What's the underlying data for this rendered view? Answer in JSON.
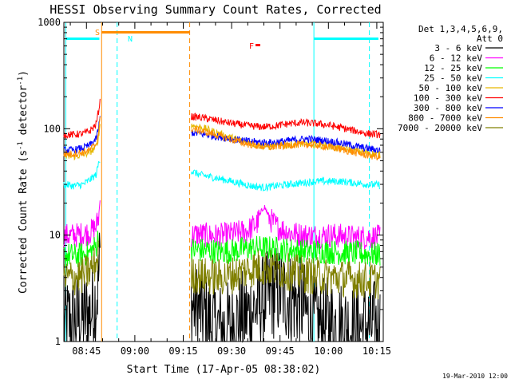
{
  "chart_data": {
    "type": "line",
    "title": "HESSI Observing Summary Count Rates, Corrected",
    "xlabel": "Start Time (17-Apr-05 08:38:02)",
    "ylabel": "Corrected Count Rate (s⁻¹ detector⁻¹)",
    "ylabel_main": "Corrected Count Rate (s",
    "ylabel_sup1": "-1",
    "ylabel_mid": " detector",
    "ylabel_sup2": "-1",
    "ylabel_end": ")",
    "yscale": "log",
    "ylim": [
      1,
      1000
    ],
    "xlim_minutes": [
      0,
      99
    ],
    "x_ticks": [
      {
        "label": "08:45",
        "minute": 7
      },
      {
        "label": "09:00",
        "minute": 22
      },
      {
        "label": "09:15",
        "minute": 37
      },
      {
        "label": "09:30",
        "minute": 52
      },
      {
        "label": "09:45",
        "minute": 67
      },
      {
        "label": "10:00",
        "minute": 82
      },
      {
        "label": "10:15",
        "minute": 97
      }
    ],
    "y_ticks": [
      {
        "label": "1",
        "value": 1
      },
      {
        "label": "10",
        "value": 10
      },
      {
        "label": "100",
        "value": 100
      },
      {
        "label": "1000",
        "value": 1000
      }
    ],
    "legend_header": [
      "Det 1,3,4,5,6,9,",
      "Att 0"
    ],
    "series": [
      {
        "name": "3 - 6 keV",
        "color": "#000000",
        "segments": [
          {
            "x": [
              0,
              4,
              8,
              10,
              10.8,
              11.2
            ],
            "y": [
              1.5,
              1.6,
              1.8,
              2.5,
              4,
              6
            ]
          },
          {
            "x": [
              39.5,
              42,
              46,
              50,
              54,
              58,
              62,
              66,
              70,
              74,
              76,
              80,
              82,
              86,
              90,
              94,
              98
            ],
            "y": [
              2.2,
              2.0,
              1.4,
              1.3,
              1.6,
              1.9,
              2.4,
              3.0,
              2.6,
              2.2,
              1.6,
              1.4,
              1.5,
              1.4,
              1.3,
              1.4,
              1.4
            ]
          }
        ]
      },
      {
        "name": "6 - 12 keV",
        "color": "#ff00ff",
        "segments": [
          {
            "x": [
              0,
              4,
              8,
              10,
              10.8,
              11.2
            ],
            "y": [
              9.8,
              10,
              10.5,
              12,
              15,
              21
            ]
          },
          {
            "x": [
              39.5,
              42,
              46,
              50,
              54,
              57,
              60,
              62,
              64,
              66,
              70,
              74,
              78,
              82,
              86,
              90,
              94,
              98
            ],
            "y": [
              10,
              10.2,
              9.8,
              10,
              10.5,
              11,
              13,
              19,
              14,
              12,
              10.5,
              10,
              9.8,
              10,
              9.8,
              9.5,
              9.6,
              9.5
            ]
          }
        ]
      },
      {
        "name": "12 - 25 keV",
        "color": "#00ff00",
        "segments": [
          {
            "x": [
              0,
              4,
              8,
              10,
              10.8
            ],
            "y": [
              6.5,
              6.4,
              6.8,
              8,
              10
            ]
          },
          {
            "x": [
              39.5,
              44,
              48,
              52,
              56,
              60,
              64,
              68,
              72,
              76,
              80,
              84,
              88,
              92,
              96,
              98
            ],
            "y": [
              7.3,
              7.2,
              7.0,
              7.1,
              7.4,
              7.6,
              7.5,
              7.3,
              7.2,
              7.0,
              7.1,
              6.9,
              6.8,
              6.7,
              6.6,
              6.6
            ]
          }
        ]
      },
      {
        "name": "25 - 50 keV",
        "color": "#00ffff",
        "segments": [
          {
            "x": [
              0,
              3,
              6,
              8,
              10,
              10.8,
              11.2
            ],
            "y": [
              30,
              29,
              30,
              33,
              37,
              48,
              52
            ]
          },
          {
            "x": [
              39.5,
              42,
              46,
              50,
              54,
              58,
              62,
              66,
              70,
              74,
              78,
              82,
              86,
              90,
              94,
              98
            ],
            "y": [
              40,
              37,
              35,
              33,
              31,
              29,
              28,
              29,
              30,
              31,
              32,
              32,
              32,
              31,
              30,
              29.5
            ]
          }
        ]
      },
      {
        "name": "50 - 100 keV",
        "color": "#e6b800",
        "segments": [
          {
            "x": [
              0,
              3,
              6,
              8,
              10,
              10.8,
              11.2
            ],
            "y": [
              55,
              55,
              57,
              60,
              67,
              85,
              110
            ]
          },
          {
            "x": [
              39.5,
              44,
              48,
              52,
              56,
              60,
              64,
              68,
              72,
              76,
              80,
              84,
              88,
              92,
              96,
              98
            ],
            "y": [
              108,
              100,
              90,
              82,
              76,
              70,
              68,
              70,
              72,
              72,
              70,
              67,
              64,
              61,
              58,
              57
            ]
          }
        ]
      },
      {
        "name": "100 - 300 keV",
        "color": "#ff0000",
        "segments": [
          {
            "x": [
              0,
              3,
              6,
              8,
              10,
              10.8,
              11.2
            ],
            "y": [
              88,
              88,
              90,
              95,
              110,
              150,
              180
            ]
          },
          {
            "x": [
              39.5,
              42,
              46,
              50,
              54,
              58,
              62,
              66,
              70,
              74,
              78,
              82,
              86,
              90,
              94,
              98
            ],
            "y": [
              130,
              128,
              122,
              115,
              110,
              106,
              104,
              107,
              112,
              114,
              112,
              108,
              102,
              96,
              90,
              88
            ]
          }
        ]
      },
      {
        "name": "300 - 800 keV",
        "color": "#0000ff",
        "segments": [
          {
            "x": [
              0,
              3,
              6,
              8,
              10,
              10.8,
              11.2
            ],
            "y": [
              63,
              63,
              66,
              70,
              80,
              105,
              125
            ]
          },
          {
            "x": [
              39.5,
              44,
              48,
              52,
              56,
              60,
              64,
              68,
              72,
              76,
              80,
              84,
              88,
              92,
              96,
              98
            ],
            "y": [
              92,
              88,
              84,
              80,
              77,
              75,
              74,
              76,
              79,
              80,
              78,
              75,
              71,
              67,
              64,
              63
            ]
          }
        ]
      },
      {
        "name": "800 - 7000 keV",
        "color": "#ff8c00",
        "segments": [
          {
            "x": [
              0,
              3,
              6,
              8,
              10,
              10.8,
              11.2
            ],
            "y": [
              58,
              58,
              60,
              63,
              72,
              95,
              120
            ]
          },
          {
            "x": [
              39.5,
              44,
              48,
              52,
              56,
              60,
              64,
              68,
              72,
              76,
              80,
              84,
              88,
              92,
              96,
              98
            ],
            "y": [
              100,
              93,
              86,
              79,
              73,
              69,
              67,
              69,
              71,
              71,
              69,
              66,
              62,
              58,
              55,
              54
            ]
          }
        ]
      },
      {
        "name": "7000 - 20000 keV",
        "color": "#808000",
        "segments": [
          {
            "x": [
              0,
              3,
              6,
              8,
              10,
              10.8
            ],
            "y": [
              3.9,
              4.0,
              4.2,
              4.6,
              5.5,
              7
            ]
          },
          {
            "x": [
              39.5,
              44,
              48,
              52,
              56,
              60,
              64,
              68,
              72,
              76,
              80,
              84,
              88,
              92,
              96,
              98
            ],
            "y": [
              4.2,
              4.1,
              4.0,
              4.2,
              4.6,
              5.0,
              4.9,
              4.6,
              4.4,
              4.2,
              4.1,
              4.0,
              3.9,
              3.8,
              3.8,
              3.7
            ]
          }
        ]
      }
    ],
    "flags": [
      {
        "label": "S",
        "color": "#ff8c00"
      },
      {
        "label": "N",
        "color": "#00ffff"
      },
      {
        "label": "F",
        "color": "#ff0000"
      }
    ],
    "footer_date": "19-Mar-2010 12:00"
  }
}
